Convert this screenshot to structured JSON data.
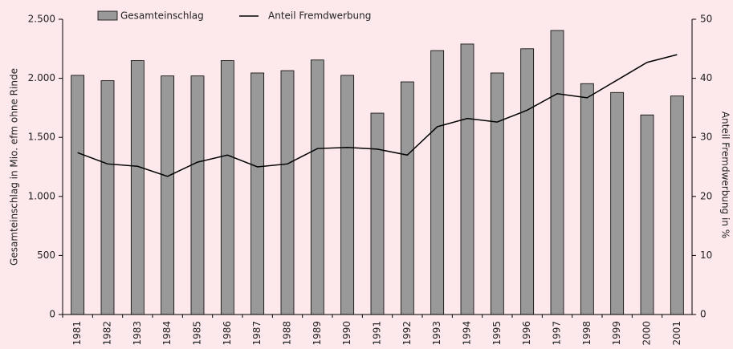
{
  "chart_data": {
    "type": "bar_line",
    "categories": [
      "1981",
      "1982",
      "1983",
      "1984",
      "1985",
      "1986",
      "1987",
      "1988",
      "1989",
      "1990",
      "1991",
      "1992",
      "1993",
      "1994",
      "1995",
      "1996",
      "1997",
      "1998",
      "1999",
      "2000",
      "2001"
    ],
    "series": [
      {
        "name": "Gesamteinschlag",
        "color": "#999999",
        "type": "bar",
        "values": [
          2025,
          1980,
          2150,
          2020,
          2020,
          2150,
          2045,
          2065,
          2155,
          2025,
          1705,
          1970,
          2235,
          2290,
          2045,
          2250,
          2405,
          1955,
          1880,
          1690,
          1850
        ]
      },
      {
        "name": "Anteil Fremdwerbung",
        "color": "#000000",
        "type": "line",
        "axis": "y2",
        "values": [
          27.4,
          25.5,
          25.1,
          23.4,
          25.8,
          27.0,
          25.0,
          25.5,
          28.1,
          28.3,
          28.0,
          27.0,
          31.8,
          33.2,
          32.6,
          34.6,
          37.4,
          36.7,
          39.7,
          42.7,
          44.0
        ]
      }
    ],
    "ylabel": "Gesamteinschlag in Mio. efm ohne Rinde",
    "y2label": "Anteil Fremdwerbung in %",
    "ylim": [
      0,
      2500
    ],
    "yticks": [
      0,
      {
        "value": 500,
        "label": "500"
      },
      {
        "value": 1000,
        "label": "1.000"
      },
      {
        "value": 1500,
        "label": "1.500"
      },
      {
        "value": 2000,
        "label": "2.000"
      },
      {
        "value": 2500,
        "label": "2.500"
      }
    ],
    "y2lim": [
      0,
      50
    ],
    "y2ticks": [
      0,
      10,
      20,
      30,
      40,
      50
    ]
  }
}
